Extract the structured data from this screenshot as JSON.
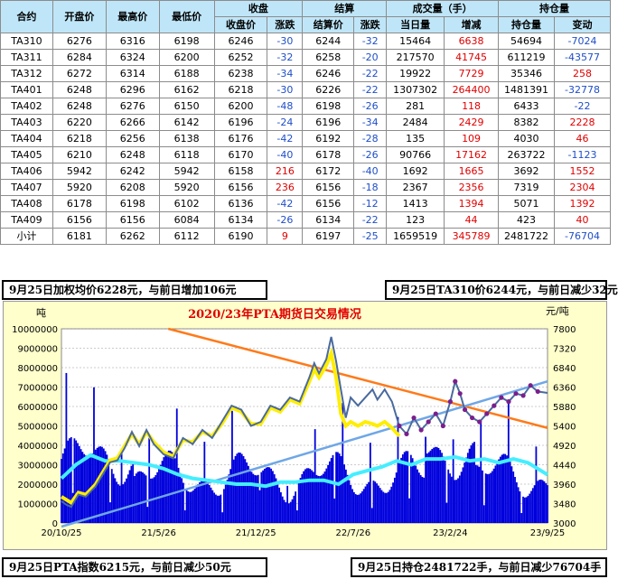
{
  "table": {
    "header_groups": {
      "contract": "合约",
      "open": "开盘价",
      "high": "最高价",
      "low": "最低价",
      "close_group": "收盘",
      "settle_group": "结算",
      "volume_group": "成交量（手）",
      "oi_group": "持仓量"
    },
    "sub_headers": [
      "收盘价",
      "涨跌",
      "结算价",
      "涨跌",
      "当日量",
      "增减",
      "持仓量",
      "变动"
    ],
    "rows": [
      [
        "TA310",
        "6276",
        "6316",
        "6198",
        "6246",
        "-30",
        "6244",
        "-32",
        "15464",
        "6638",
        "54694",
        "-7024"
      ],
      [
        "TA311",
        "6284",
        "6324",
        "6200",
        "6252",
        "-32",
        "6258",
        "-20",
        "217570",
        "41745",
        "611219",
        "-43577"
      ],
      [
        "TA312",
        "6272",
        "6314",
        "6188",
        "6238",
        "-34",
        "6246",
        "-22",
        "19922",
        "7729",
        "35346",
        "258"
      ],
      [
        "TA401",
        "6248",
        "6296",
        "6162",
        "6218",
        "-30",
        "6226",
        "-22",
        "1307302",
        "264400",
        "1481391",
        "-32778"
      ],
      [
        "TA402",
        "6248",
        "6276",
        "6150",
        "6200",
        "-48",
        "6198",
        "-26",
        "281",
        "118",
        "6433",
        "-22"
      ],
      [
        "TA403",
        "6220",
        "6266",
        "6142",
        "6196",
        "-24",
        "6196",
        "-34",
        "2484",
        "2429",
        "8382",
        "2228"
      ],
      [
        "TA404",
        "6218",
        "6256",
        "6138",
        "6176",
        "-42",
        "6192",
        "-28",
        "135",
        "109",
        "4030",
        "46"
      ],
      [
        "TA405",
        "6210",
        "6248",
        "6118",
        "6170",
        "-40",
        "6178",
        "-26",
        "90766",
        "17162",
        "263722",
        "-1123"
      ],
      [
        "TA406",
        "5942",
        "6242",
        "5942",
        "6158",
        "216",
        "6172",
        "-40",
        "1692",
        "1665",
        "3692",
        "1552"
      ],
      [
        "TA407",
        "5920",
        "6208",
        "5920",
        "6156",
        "236",
        "6156",
        "-18",
        "2367",
        "2356",
        "7319",
        "2304"
      ],
      [
        "TA408",
        "6178",
        "6198",
        "6102",
        "6136",
        "-42",
        "6156",
        "-12",
        "1413",
        "1394",
        "5071",
        "1392"
      ],
      [
        "TA409",
        "6156",
        "6156",
        "6084",
        "6134",
        "-26",
        "6134",
        "-22",
        "123",
        "44",
        "423",
        "40"
      ]
    ],
    "total": [
      "小计",
      "6181",
      "6262",
      "6112",
      "6190",
      "9",
      "6197",
      "-25",
      "1659519",
      "345789",
      "2481722",
      "-76704"
    ]
  },
  "notes": {
    "top_left": "9月25日加权均价6228元，与前日增加106元",
    "top_right": "9月25日TA310价6244元，与前日减少32元",
    "bottom_left": "9月25日PTA指数6215元，与前日减少50元",
    "bottom_right": "9月25日持仓2481722手，与前日减少76704手"
  },
  "chart_data": {
    "type": "line",
    "title": "2020/23年PTA期货日交易情况",
    "left_unit": "吨",
    "right_unit": "元/吨",
    "y_left_ticks": [
      "10000000",
      "9000000",
      "8000000",
      "7000000",
      "6000000",
      "5000000",
      "4000000",
      "3000000",
      "2000000",
      "1000000",
      "0"
    ],
    "y_left_range": [
      0,
      10000000
    ],
    "y_right_ticks": [
      "7800",
      "7320",
      "6840",
      "6360",
      "5880",
      "5400",
      "4920",
      "4440",
      "3960",
      "3480",
      "3000"
    ],
    "y_right_range": [
      3000,
      7800
    ],
    "x_ticks": [
      "20/10/25",
      "21/5/26",
      "21/12/25",
      "22/7/26",
      "23/2/24",
      "23/9/25"
    ],
    "grid": true,
    "colors": {
      "price_line": "#4a6a9e",
      "settle_line": "#ffee00",
      "volume_bars": "#0000dd",
      "open_interest": "#44eeff",
      "recent_markers": "#7a1f8c",
      "trend_down": "#ff7a1a",
      "trend_up": "#6fa7e6",
      "background": "#ffffcc",
      "neg_text": "#1f4ec8",
      "pos_text": "#e00000",
      "header_bg": "#bfe6f8"
    },
    "series": [
      {
        "role": "price",
        "axis": "right",
        "points": [
          [
            0,
            3540
          ],
          [
            0.01,
            3450
          ],
          [
            0.02,
            3400
          ],
          [
            0.035,
            3700
          ],
          [
            0.05,
            3650
          ],
          [
            0.07,
            3900
          ],
          [
            0.09,
            4300
          ],
          [
            0.1,
            4500
          ],
          [
            0.115,
            4550
          ],
          [
            0.13,
            4850
          ],
          [
            0.145,
            5250
          ],
          [
            0.16,
            4900
          ],
          [
            0.175,
            5300
          ],
          [
            0.19,
            4950
          ],
          [
            0.21,
            4700
          ],
          [
            0.23,
            4600
          ],
          [
            0.25,
            5100
          ],
          [
            0.27,
            4950
          ],
          [
            0.29,
            5300
          ],
          [
            0.31,
            5100
          ],
          [
            0.33,
            5500
          ],
          [
            0.35,
            5900
          ],
          [
            0.37,
            5800
          ],
          [
            0.39,
            5400
          ],
          [
            0.41,
            5500
          ],
          [
            0.43,
            5900
          ],
          [
            0.45,
            5800
          ],
          [
            0.47,
            6100
          ],
          [
            0.49,
            6000
          ],
          [
            0.51,
            6600
          ],
          [
            0.52,
            6950
          ],
          [
            0.53,
            6700
          ],
          [
            0.545,
            7050
          ],
          [
            0.555,
            7600
          ],
          [
            0.565,
            7000
          ],
          [
            0.575,
            6300
          ],
          [
            0.585,
            5600
          ],
          [
            0.595,
            6100
          ],
          [
            0.61,
            5900
          ],
          [
            0.625,
            6100
          ],
          [
            0.64,
            6300
          ],
          [
            0.65,
            6050
          ],
          [
            0.665,
            6300
          ],
          [
            0.68,
            6000
          ],
          [
            0.695,
            5400
          ],
          [
            0.71,
            5200
          ],
          [
            0.725,
            5600
          ],
          [
            0.74,
            5300
          ],
          [
            0.755,
            5500
          ],
          [
            0.77,
            5700
          ],
          [
            0.785,
            5400
          ],
          [
            0.8,
            6000
          ],
          [
            0.81,
            6500
          ],
          [
            0.82,
            6200
          ],
          [
            0.83,
            5800
          ],
          [
            0.845,
            5600
          ],
          [
            0.86,
            5500
          ],
          [
            0.875,
            5700
          ],
          [
            0.89,
            5900
          ],
          [
            0.905,
            6100
          ],
          [
            0.92,
            6000
          ],
          [
            0.935,
            6200
          ],
          [
            0.95,
            6150
          ],
          [
            0.965,
            6400
          ],
          [
            0.98,
            6250
          ],
          [
            1,
            6215
          ]
        ]
      },
      {
        "role": "settle",
        "axis": "right",
        "points": [
          [
            0,
            3650
          ],
          [
            0.02,
            3500
          ],
          [
            0.035,
            3750
          ],
          [
            0.05,
            3700
          ],
          [
            0.07,
            3950
          ],
          [
            0.09,
            4350
          ],
          [
            0.1,
            4550
          ],
          [
            0.115,
            4600
          ],
          [
            0.13,
            4900
          ],
          [
            0.145,
            5200
          ],
          [
            0.16,
            4950
          ],
          [
            0.175,
            5250
          ],
          [
            0.19,
            5000
          ],
          [
            0.21,
            4750
          ],
          [
            0.23,
            4650
          ],
          [
            0.25,
            5050
          ],
          [
            0.27,
            5000
          ],
          [
            0.29,
            5250
          ],
          [
            0.31,
            5150
          ],
          [
            0.33,
            5450
          ],
          [
            0.35,
            5850
          ],
          [
            0.37,
            5750
          ],
          [
            0.39,
            5450
          ],
          [
            0.41,
            5450
          ],
          [
            0.43,
            5850
          ],
          [
            0.45,
            5750
          ],
          [
            0.47,
            6050
          ],
          [
            0.49,
            5950
          ],
          [
            0.51,
            6500
          ],
          [
            0.52,
            6800
          ],
          [
            0.53,
            6600
          ],
          [
            0.545,
            6900
          ],
          [
            0.555,
            7200
          ],
          [
            0.565,
            6600
          ],
          [
            0.575,
            5700
          ],
          [
            0.585,
            5400
          ],
          [
            0.595,
            5500
          ],
          [
            0.61,
            5400
          ],
          [
            0.625,
            5500
          ],
          [
            0.64,
            5450
          ],
          [
            0.65,
            5400
          ],
          [
            0.665,
            5500
          ],
          [
            0.68,
            5350
          ],
          [
            0.695,
            5150
          ]
        ]
      },
      {
        "role": "open_interest",
        "axis": "left",
        "points": [
          [
            0,
            2300000
          ],
          [
            0.03,
            3000000
          ],
          [
            0.06,
            3500000
          ],
          [
            0.09,
            3200000
          ],
          [
            0.12,
            3200000
          ],
          [
            0.15,
            3100000
          ],
          [
            0.18,
            3000000
          ],
          [
            0.21,
            2800000
          ],
          [
            0.24,
            2500000
          ],
          [
            0.27,
            2300000
          ],
          [
            0.3,
            2200000
          ],
          [
            0.33,
            2100000
          ],
          [
            0.36,
            2000000
          ],
          [
            0.39,
            2000000
          ],
          [
            0.42,
            1900000
          ],
          [
            0.45,
            2100000
          ],
          [
            0.48,
            2100000
          ],
          [
            0.51,
            2200000
          ],
          [
            0.54,
            2200000
          ],
          [
            0.57,
            2000000
          ],
          [
            0.6,
            2500000
          ],
          [
            0.63,
            2700000
          ],
          [
            0.66,
            2900000
          ],
          [
            0.69,
            3200000
          ],
          [
            0.72,
            3000000
          ],
          [
            0.75,
            3300000
          ],
          [
            0.78,
            3300000
          ],
          [
            0.81,
            3400000
          ],
          [
            0.84,
            3200000
          ],
          [
            0.87,
            3300000
          ],
          [
            0.9,
            3100000
          ],
          [
            0.93,
            3300000
          ],
          [
            0.96,
            3100000
          ],
          [
            1,
            2481722
          ]
        ]
      }
    ]
  }
}
